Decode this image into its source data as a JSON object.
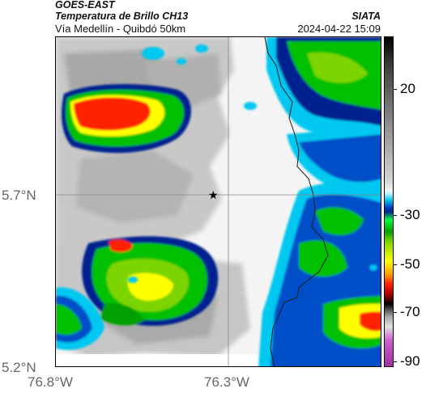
{
  "header": {
    "source": "GOES-EAST",
    "product": "Temperatura de Brillo CH13",
    "region": "Vía Medellín - Quibdó 50km",
    "organization": "SIATA",
    "datetime": "2024-04-22 15:09"
  },
  "map": {
    "x_ticks": [
      "76.8°W",
      "76.3°W"
    ],
    "y_ticks": [
      "5.7°N",
      "5.2°N"
    ],
    "marker": "star-marker",
    "colors": {
      "warm_gray": "#bdbdbd",
      "clear": "#f5f5f5",
      "cyan": "#00c8f0",
      "blue": "#002090",
      "green": "#00c000",
      "yellow": "#ffff00",
      "red": "#ff2000"
    }
  },
  "colorbar": {
    "ticks": [
      "20",
      "-30",
      "-50",
      "-70",
      "-90"
    ],
    "unit_hint": "brightness temperature (°C)"
  }
}
